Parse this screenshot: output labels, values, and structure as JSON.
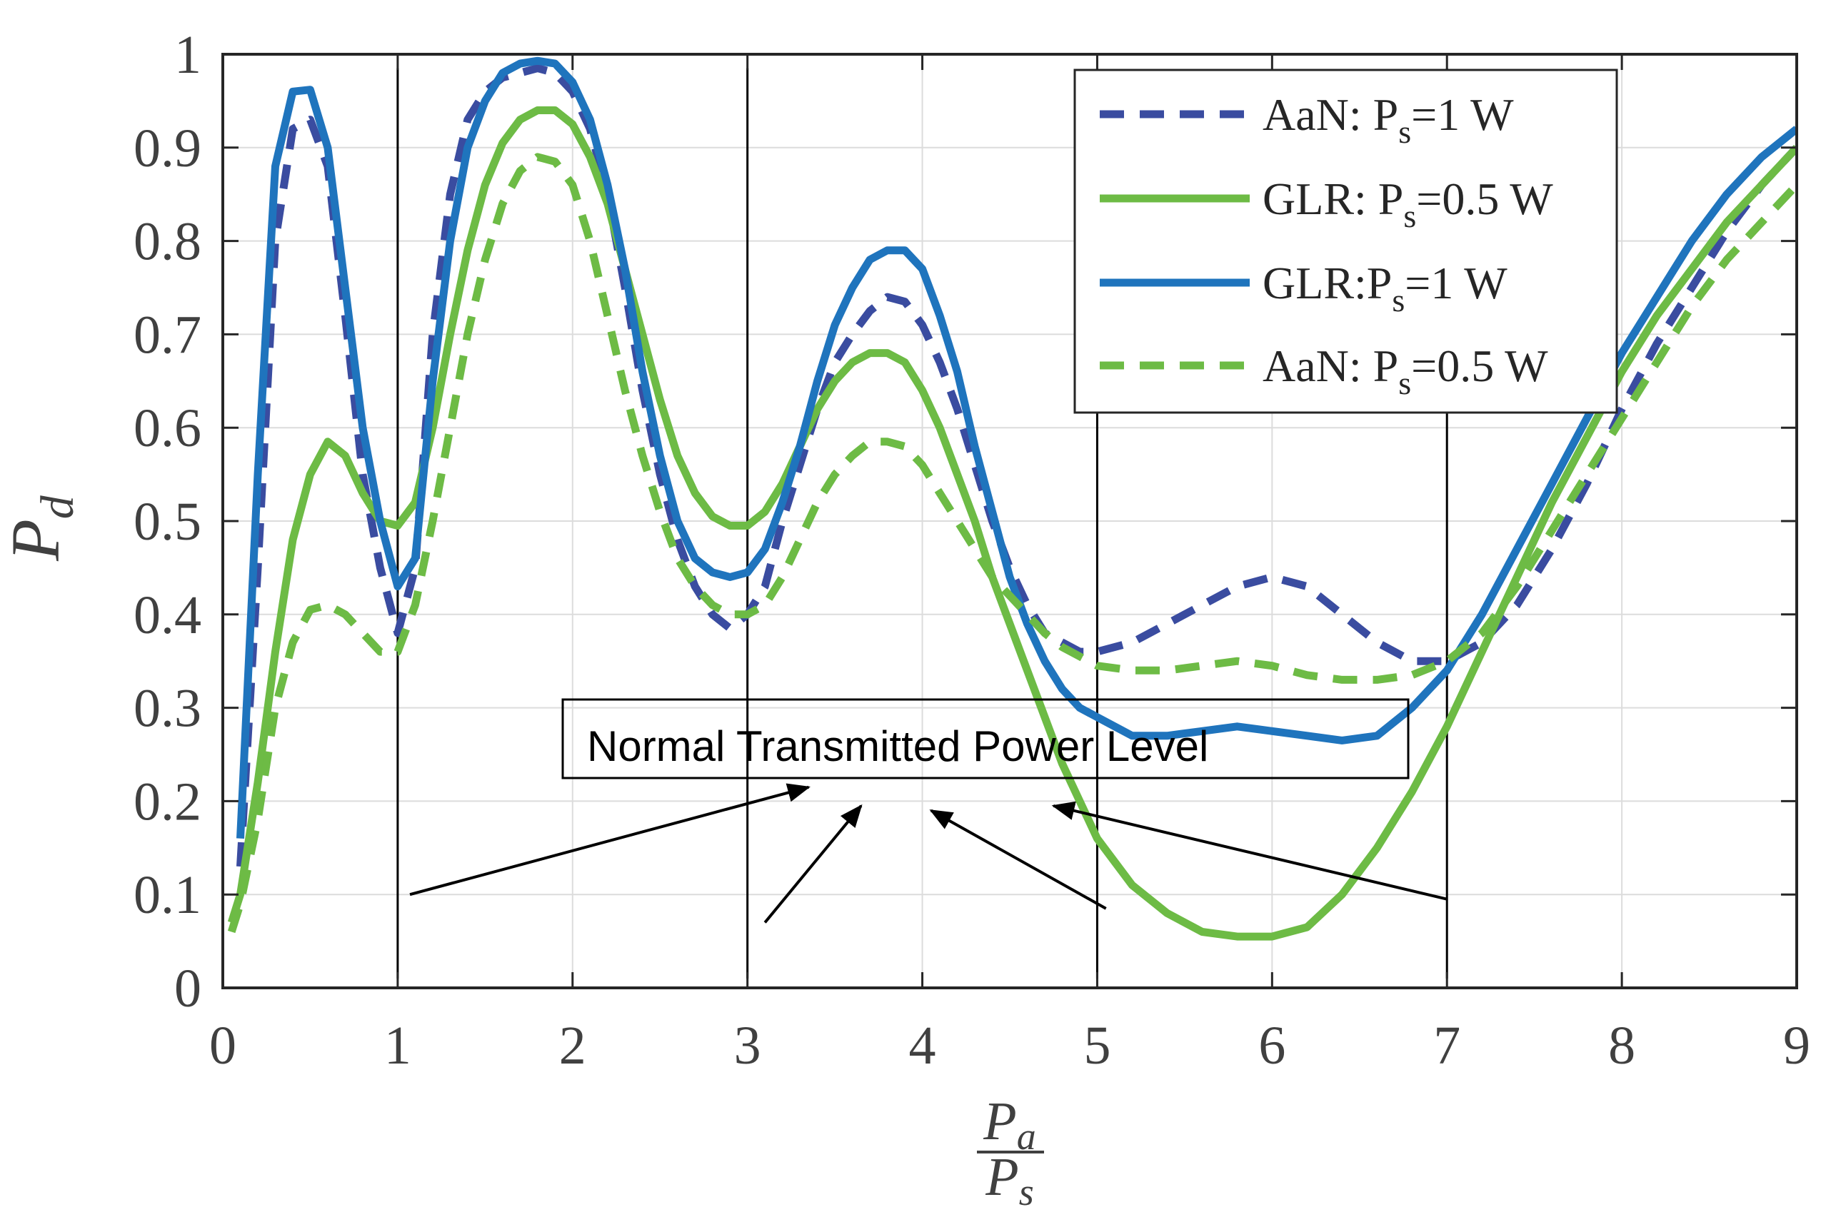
{
  "chart_data": {
    "type": "line",
    "xlabel": {
      "num_var": "P",
      "num_sub": "a",
      "den_var": "P",
      "den_sub": "s"
    },
    "ylabel": {
      "var": "P",
      "sub": "d"
    },
    "xlim": [
      0,
      9
    ],
    "ylim": [
      0,
      1
    ],
    "grid": true,
    "x_ticks": [
      "0",
      "1",
      "2",
      "3",
      "4",
      "5",
      "6",
      "7",
      "8",
      "9"
    ],
    "y_ticks": [
      "0",
      "0.1",
      "0.2",
      "0.3",
      "0.4",
      "0.5",
      "0.6",
      "0.7",
      "0.8",
      "0.9",
      "1"
    ],
    "vertical_lines_x": [
      1,
      3,
      5,
      7
    ],
    "legend_position": "top-right",
    "series": [
      {
        "name_main": "AaN: P",
        "name_sub": "s",
        "name_rest": "=1 W",
        "color": "#3a4ca0",
        "dash": "dashed",
        "x": [
          0.1,
          0.2,
          0.3,
          0.4,
          0.5,
          0.6,
          0.7,
          0.8,
          0.9,
          1.0,
          1.1,
          1.2,
          1.3,
          1.4,
          1.5,
          1.6,
          1.7,
          1.8,
          1.9,
          2.0,
          2.1,
          2.2,
          2.3,
          2.4,
          2.5,
          2.6,
          2.7,
          2.8,
          2.9,
          3.0,
          3.1,
          3.2,
          3.3,
          3.4,
          3.5,
          3.6,
          3.7,
          3.8,
          3.9,
          4.0,
          4.1,
          4.2,
          4.3,
          4.4,
          4.5,
          4.6,
          4.7,
          4.8,
          4.9,
          5.0,
          5.2,
          5.4,
          5.6,
          5.8,
          6.0,
          6.2,
          6.4,
          6.6,
          6.8,
          7.0,
          7.2,
          7.4,
          7.6,
          7.8,
          8.0,
          8.2,
          8.4,
          8.6,
          8.8,
          9.0
        ],
        "y": [
          0.13,
          0.45,
          0.8,
          0.92,
          0.93,
          0.88,
          0.72,
          0.55,
          0.45,
          0.38,
          0.45,
          0.7,
          0.85,
          0.93,
          0.96,
          0.975,
          0.98,
          0.985,
          0.98,
          0.96,
          0.92,
          0.85,
          0.75,
          0.64,
          0.55,
          0.48,
          0.43,
          0.4,
          0.385,
          0.4,
          0.43,
          0.5,
          0.56,
          0.62,
          0.67,
          0.7,
          0.725,
          0.74,
          0.735,
          0.71,
          0.67,
          0.62,
          0.56,
          0.5,
          0.45,
          0.41,
          0.38,
          0.37,
          0.36,
          0.36,
          0.37,
          0.39,
          0.41,
          0.43,
          0.44,
          0.43,
          0.4,
          0.37,
          0.35,
          0.35,
          0.37,
          0.41,
          0.47,
          0.54,
          0.62,
          0.69,
          0.75,
          0.81,
          0.86,
          0.9
        ]
      },
      {
        "name_main": "GLR: P",
        "name_sub": "s",
        "name_rest": "=0.5 W",
        "color": "#6dbb45",
        "dash": "solid",
        "x": [
          0.05,
          0.1,
          0.2,
          0.3,
          0.4,
          0.5,
          0.6,
          0.7,
          0.8,
          0.9,
          1.0,
          1.1,
          1.2,
          1.3,
          1.4,
          1.5,
          1.6,
          1.7,
          1.8,
          1.9,
          2.0,
          2.1,
          2.2,
          2.3,
          2.4,
          2.5,
          2.6,
          2.7,
          2.8,
          2.9,
          3.0,
          3.1,
          3.2,
          3.3,
          3.4,
          3.5,
          3.6,
          3.7,
          3.8,
          3.9,
          4.0,
          4.1,
          4.2,
          4.3,
          4.4,
          4.5,
          4.6,
          4.7,
          4.8,
          4.9,
          5.0,
          5.2,
          5.4,
          5.6,
          5.8,
          6.0,
          6.2,
          6.4,
          6.6,
          6.8,
          7.0,
          7.2,
          7.4,
          7.6,
          7.8,
          8.0,
          8.2,
          8.4,
          8.6,
          8.8,
          9.0
        ],
        "y": [
          0.07,
          0.1,
          0.22,
          0.36,
          0.48,
          0.55,
          0.585,
          0.57,
          0.53,
          0.5,
          0.495,
          0.52,
          0.6,
          0.7,
          0.79,
          0.86,
          0.905,
          0.93,
          0.94,
          0.94,
          0.925,
          0.89,
          0.84,
          0.77,
          0.7,
          0.63,
          0.57,
          0.53,
          0.505,
          0.495,
          0.495,
          0.51,
          0.54,
          0.58,
          0.62,
          0.65,
          0.67,
          0.68,
          0.68,
          0.67,
          0.64,
          0.6,
          0.55,
          0.5,
          0.44,
          0.39,
          0.34,
          0.29,
          0.24,
          0.2,
          0.16,
          0.11,
          0.08,
          0.06,
          0.055,
          0.055,
          0.065,
          0.1,
          0.15,
          0.21,
          0.28,
          0.36,
          0.44,
          0.52,
          0.59,
          0.66,
          0.72,
          0.77,
          0.82,
          0.86,
          0.9
        ]
      },
      {
        "name_main": "GLR:P",
        "name_sub": "s",
        "name_rest": "=1 W",
        "color": "#1f74bd",
        "dash": "solid",
        "x": [
          0.1,
          0.2,
          0.3,
          0.4,
          0.5,
          0.6,
          0.7,
          0.8,
          0.9,
          1.0,
          1.1,
          1.2,
          1.3,
          1.4,
          1.5,
          1.6,
          1.7,
          1.8,
          1.9,
          2.0,
          2.1,
          2.2,
          2.3,
          2.4,
          2.5,
          2.6,
          2.7,
          2.8,
          2.9,
          3.0,
          3.1,
          3.2,
          3.3,
          3.4,
          3.5,
          3.6,
          3.7,
          3.8,
          3.9,
          4.0,
          4.1,
          4.2,
          4.3,
          4.4,
          4.5,
          4.6,
          4.7,
          4.8,
          4.9,
          5.0,
          5.2,
          5.4,
          5.6,
          5.8,
          6.0,
          6.2,
          6.4,
          6.6,
          6.8,
          7.0,
          7.2,
          7.4,
          7.6,
          7.8,
          8.0,
          8.2,
          8.4,
          8.6,
          8.8,
          9.0
        ],
        "y": [
          0.16,
          0.55,
          0.88,
          0.96,
          0.962,
          0.9,
          0.75,
          0.6,
          0.5,
          0.43,
          0.46,
          0.65,
          0.8,
          0.9,
          0.95,
          0.98,
          0.99,
          0.993,
          0.99,
          0.97,
          0.93,
          0.86,
          0.77,
          0.66,
          0.57,
          0.5,
          0.46,
          0.445,
          0.44,
          0.445,
          0.47,
          0.52,
          0.58,
          0.65,
          0.71,
          0.75,
          0.78,
          0.79,
          0.79,
          0.77,
          0.72,
          0.66,
          0.58,
          0.51,
          0.44,
          0.39,
          0.35,
          0.32,
          0.3,
          0.29,
          0.27,
          0.27,
          0.275,
          0.28,
          0.275,
          0.27,
          0.265,
          0.27,
          0.3,
          0.34,
          0.4,
          0.47,
          0.54,
          0.61,
          0.68,
          0.74,
          0.8,
          0.85,
          0.89,
          0.92
        ]
      },
      {
        "name_main": "AaN: P",
        "name_sub": "s",
        "name_rest": "=0.5 W",
        "color": "#6dbb45",
        "dash": "dashed",
        "x": [
          0.05,
          0.1,
          0.2,
          0.3,
          0.4,
          0.5,
          0.6,
          0.7,
          0.8,
          0.9,
          1.0,
          1.1,
          1.2,
          1.3,
          1.4,
          1.5,
          1.6,
          1.7,
          1.8,
          1.9,
          2.0,
          2.1,
          2.2,
          2.3,
          2.4,
          2.5,
          2.6,
          2.7,
          2.8,
          2.9,
          3.0,
          3.1,
          3.2,
          3.3,
          3.4,
          3.5,
          3.6,
          3.7,
          3.8,
          3.9,
          4.0,
          4.1,
          4.2,
          4.3,
          4.4,
          4.5,
          4.6,
          4.7,
          4.8,
          4.9,
          5.0,
          5.2,
          5.4,
          5.6,
          5.8,
          6.0,
          6.2,
          6.4,
          6.6,
          6.8,
          7.0,
          7.2,
          7.4,
          7.6,
          7.8,
          8.0,
          8.2,
          8.4,
          8.6,
          8.8,
          9.0
        ],
        "y": [
          0.06,
          0.09,
          0.18,
          0.3,
          0.37,
          0.405,
          0.41,
          0.4,
          0.38,
          0.36,
          0.36,
          0.41,
          0.5,
          0.6,
          0.7,
          0.78,
          0.84,
          0.875,
          0.89,
          0.885,
          0.86,
          0.8,
          0.72,
          0.64,
          0.57,
          0.51,
          0.46,
          0.43,
          0.41,
          0.4,
          0.4,
          0.41,
          0.44,
          0.48,
          0.52,
          0.55,
          0.57,
          0.585,
          0.585,
          0.58,
          0.56,
          0.53,
          0.5,
          0.47,
          0.44,
          0.42,
          0.4,
          0.38,
          0.365,
          0.355,
          0.345,
          0.34,
          0.34,
          0.345,
          0.35,
          0.345,
          0.335,
          0.33,
          0.33,
          0.335,
          0.35,
          0.38,
          0.43,
          0.49,
          0.55,
          0.61,
          0.67,
          0.73,
          0.78,
          0.82,
          0.86
        ]
      }
    ],
    "annotation": {
      "text": "Normal Transmitted Power Level",
      "arrows": [
        {
          "from": [
            1.07,
            0.1
          ],
          "to": [
            3.35,
            0.215
          ]
        },
        {
          "from": [
            3.1,
            0.07
          ],
          "to": [
            3.65,
            0.195
          ]
        },
        {
          "from": [
            5.05,
            0.085
          ],
          "to": [
            4.05,
            0.19
          ]
        },
        {
          "from": [
            7.0,
            0.095
          ],
          "to": [
            4.75,
            0.195
          ]
        }
      ]
    }
  }
}
